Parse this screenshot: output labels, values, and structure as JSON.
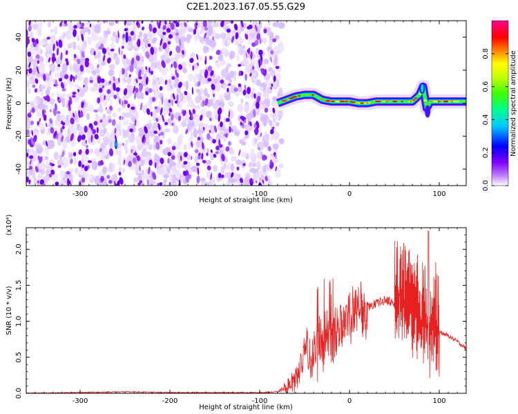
{
  "title": "C2E1.2023.167.05.55.G29",
  "chart_data": [
    {
      "type": "heatmap",
      "xlabel": "Height of straight line (km)",
      "ylabel": "Frequency (Hz)",
      "xlim": [
        -360,
        130
      ],
      "ylim": [
        -50,
        50
      ],
      "xticks": [
        -300,
        -200,
        -100,
        0,
        100
      ],
      "yticks": [
        -40,
        -20,
        0,
        20,
        40
      ],
      "noise_region_x": [
        -360,
        -80
      ],
      "signal_track": {
        "x": [
          -80,
          -70,
          -60,
          -50,
          -40,
          -30,
          -20,
          -10,
          0,
          10,
          20,
          30,
          40,
          50,
          60,
          70,
          78,
          82,
          86,
          90,
          100,
          110,
          120,
          130
        ],
        "freq_hz": [
          0,
          2,
          4,
          5,
          5,
          2,
          1,
          1,
          1,
          0,
          0,
          1,
          1,
          1,
          1,
          1,
          5,
          10,
          -3,
          1,
          1,
          1,
          1,
          1
        ]
      },
      "colorbar": {
        "label": "Normalized spectral amplitude",
        "range": [
          0.0,
          1.0
        ],
        "ticks": [
          "0.0",
          "0.2",
          "0.4",
          "0.6",
          "0.8"
        ],
        "colormap": [
          "#ffffff",
          "#8000ff",
          "#0000ff",
          "#00c0ff",
          "#00ff80",
          "#40ff00",
          "#c0ff00",
          "#ffff00",
          "#ff8000",
          "#ff0000",
          "#ff0090"
        ]
      }
    },
    {
      "type": "line",
      "xlabel": "Height of straight line (km)",
      "ylabel": "SNR (10 * v/v)",
      "scale_label": "(x10⁴)",
      "xlim": [
        -360,
        130
      ],
      "ylim": [
        0,
        2.3
      ],
      "xticks": [
        -300,
        -200,
        -100,
        0,
        100
      ],
      "yticks": [
        "0.0",
        "0.5",
        "1.0",
        "1.5",
        "2.0"
      ],
      "line_color": "#e82020",
      "series": [
        {
          "name": "SNR",
          "x": [
            -360,
            -250,
            -200,
            -100,
            -80,
            -65,
            -55,
            -50,
            -40,
            -30,
            -20,
            -10,
            0,
            10,
            20,
            30,
            40,
            50,
            55,
            60,
            70,
            80,
            90,
            95,
            100,
            110,
            120,
            130
          ],
          "values": [
            0.0,
            0.02,
            0.01,
            0.01,
            0.02,
            0.1,
            0.35,
            0.6,
            0.5,
            0.7,
            0.8,
            0.95,
            1.05,
            1.15,
            1.2,
            1.25,
            1.3,
            1.25,
            1.4,
            1.2,
            1.1,
            1.0,
            0.85,
            1.05,
            0.85,
            0.8,
            0.72,
            0.62
          ],
          "peak": {
            "x": 88,
            "y": 2.25
          }
        }
      ]
    }
  ]
}
